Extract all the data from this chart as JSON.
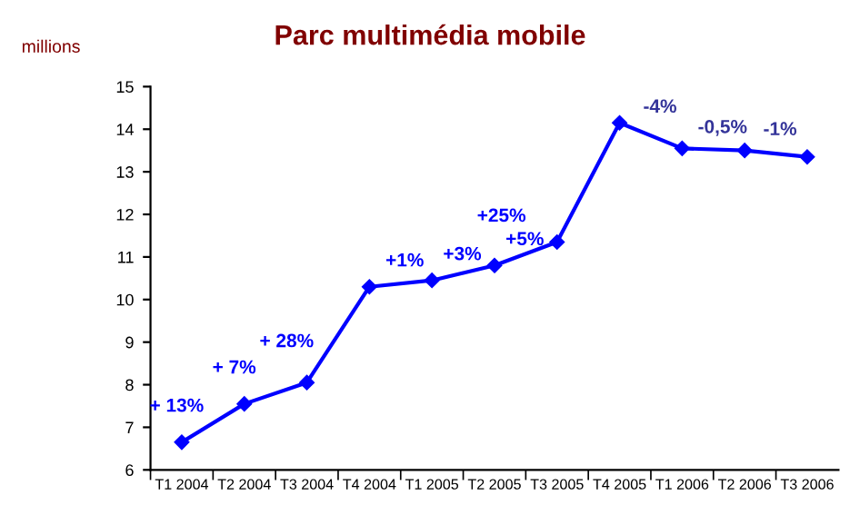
{
  "chart_data": {
    "type": "line",
    "title": "Parc multimédia mobile",
    "ylabel": "millions",
    "categories": [
      "T1 2004",
      "T2 2004",
      "T3 2004",
      "T4 2004",
      "T1 2005",
      "T2 2005",
      "T3 2005",
      "T4 2005",
      "T1 2006",
      "T2 2006",
      "T3 2006"
    ],
    "series": [
      {
        "color": "#0000ff",
        "values": [
          6.65,
          7.55,
          8.05,
          10.3,
          10.45,
          10.8,
          11.35,
          14.15,
          13.55,
          13.5,
          13.35
        ]
      }
    ],
    "ylim": [
      6,
      15
    ],
    "yticks": [
      6,
      7,
      8,
      9,
      10,
      11,
      12,
      13,
      14,
      15
    ],
    "marker": "diamond",
    "grid": false,
    "legend": false,
    "annotations": [
      "+ 13%",
      "+ 7%",
      "+ 28%",
      "+1%",
      "+3%",
      "+5%",
      "+25%",
      "-4%",
      "-0,5%",
      "-1%"
    ]
  }
}
